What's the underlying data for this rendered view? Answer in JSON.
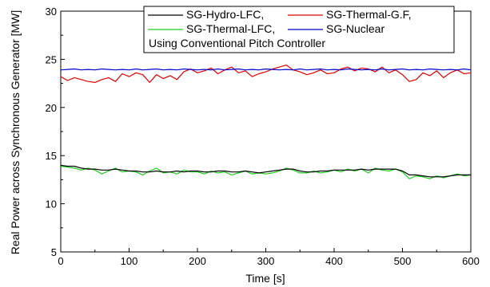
{
  "chart_data": {
    "type": "line",
    "xlabel": "Time [s]",
    "ylabel": "Real Power across Synchronous Generator [MW]",
    "xlim": [
      0,
      600
    ],
    "ylim": [
      5,
      30
    ],
    "xticks": [
      0,
      100,
      200,
      300,
      400,
      500,
      600
    ],
    "yticks": [
      5,
      10,
      15,
      20,
      25,
      30
    ],
    "grid": false,
    "legend_position": "top-right",
    "annotation": "Using Conventional Pitch Controller",
    "x": [
      0,
      10,
      20,
      30,
      40,
      50,
      60,
      70,
      80,
      90,
      100,
      110,
      120,
      130,
      140,
      150,
      160,
      170,
      180,
      190,
      200,
      210,
      220,
      230,
      240,
      250,
      260,
      270,
      280,
      290,
      300,
      310,
      320,
      330,
      340,
      350,
      360,
      370,
      380,
      390,
      400,
      410,
      420,
      430,
      440,
      450,
      460,
      470,
      480,
      490,
      500,
      510,
      520,
      530,
      540,
      550,
      560,
      570,
      580,
      590,
      600
    ],
    "series": [
      {
        "name": "SG-Hydro-LFC,",
        "color": "#000000",
        "values": [
          14.0,
          13.9,
          13.9,
          13.7,
          13.6,
          13.6,
          13.5,
          13.5,
          13.6,
          13.5,
          13.4,
          13.4,
          13.3,
          13.3,
          13.4,
          13.3,
          13.3,
          13.4,
          13.3,
          13.4,
          13.4,
          13.3,
          13.3,
          13.4,
          13.4,
          13.3,
          13.3,
          13.4,
          13.3,
          13.2,
          13.3,
          13.4,
          13.5,
          13.6,
          13.6,
          13.4,
          13.3,
          13.3,
          13.4,
          13.4,
          13.5,
          13.5,
          13.5,
          13.5,
          13.6,
          13.5,
          13.6,
          13.6,
          13.6,
          13.6,
          13.4,
          13.0,
          13.0,
          12.9,
          12.8,
          12.8,
          12.8,
          12.9,
          13.0,
          13.0,
          13.0
        ]
      },
      {
        "name": "SG-Thermal-G.F,",
        "color": "#dd0000",
        "values": [
          23.2,
          22.8,
          23.1,
          22.9,
          22.7,
          22.6,
          22.9,
          23.1,
          22.7,
          23.5,
          23.2,
          23.6,
          23.4,
          22.6,
          23.4,
          23.0,
          23.3,
          22.9,
          23.7,
          24.0,
          23.6,
          23.8,
          24.1,
          23.5,
          23.9,
          24.2,
          23.6,
          23.8,
          23.2,
          23.5,
          23.7,
          24.0,
          24.2,
          24.4,
          23.9,
          23.7,
          23.4,
          23.6,
          23.9,
          23.5,
          23.6,
          24.0,
          24.2,
          23.8,
          24.1,
          24.0,
          23.7,
          24.2,
          23.6,
          23.9,
          23.4,
          22.7,
          22.9,
          23.6,
          23.3,
          23.8,
          23.1,
          23.6,
          23.9,
          23.5,
          23.6
        ]
      },
      {
        "name": "SG-Thermal-LFC,",
        "color": "#22cc22",
        "values": [
          13.9,
          13.8,
          13.7,
          13.5,
          13.7,
          13.5,
          13.1,
          13.4,
          13.7,
          13.3,
          13.4,
          13.3,
          13.0,
          13.4,
          13.7,
          13.2,
          13.3,
          13.1,
          13.5,
          13.3,
          13.3,
          13.1,
          13.4,
          13.2,
          13.3,
          13.0,
          13.2,
          13.4,
          13.1,
          13.2,
          13.1,
          13.2,
          13.4,
          13.7,
          13.5,
          13.2,
          13.2,
          13.4,
          13.2,
          13.3,
          13.5,
          13.3,
          13.6,
          13.4,
          13.6,
          13.2,
          13.7,
          13.5,
          13.4,
          13.6,
          13.3,
          12.6,
          12.9,
          12.8,
          12.6,
          12.9,
          12.7,
          12.9,
          13.1,
          12.9,
          13.0
        ]
      },
      {
        "name": "SG-Nuclear",
        "color": "#0000cc",
        "values": [
          23.9,
          23.95,
          24.0,
          23.9,
          23.95,
          23.9,
          24.0,
          23.95,
          23.9,
          23.95,
          23.9,
          24.0,
          23.9,
          23.95,
          24.0,
          23.9,
          23.95,
          23.9,
          24.0,
          23.95,
          23.9,
          23.95,
          23.9,
          24.0,
          23.9,
          23.95,
          24.0,
          23.9,
          23.95,
          23.9,
          24.0,
          23.95,
          23.9,
          23.95,
          23.9,
          24.0,
          23.9,
          23.95,
          24.0,
          23.9,
          23.95,
          23.9,
          24.0,
          23.95,
          23.9,
          23.95,
          23.9,
          24.0,
          23.9,
          23.95,
          24.0,
          23.9,
          23.95,
          23.9,
          24.0,
          23.95,
          23.9,
          23.95,
          23.9,
          24.0,
          23.9
        ]
      }
    ]
  }
}
